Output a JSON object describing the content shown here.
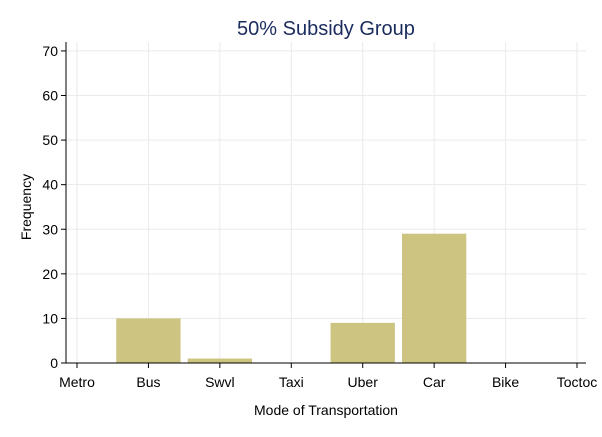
{
  "chart_data": {
    "type": "bar",
    "title": "50% Subsidy Group",
    "xlabel": "Mode of Transportation",
    "ylabel": "Frequency",
    "categories": [
      "Metro",
      "Bus",
      "Swvl",
      "Taxi",
      "Uber",
      "Car",
      "Bike",
      "Toctoc"
    ],
    "values": [
      0,
      10,
      1,
      0,
      9,
      29,
      0,
      0
    ],
    "ylim": [
      0,
      72
    ],
    "yticks": [
      0,
      10,
      20,
      30,
      40,
      50,
      60,
      70
    ],
    "xlim": [
      0,
      7
    ],
    "grid": true,
    "legend": "none",
    "bar_color": "#ccc480",
    "title_color": "#1a2b5e",
    "grid_color": "#eaeaea"
  }
}
